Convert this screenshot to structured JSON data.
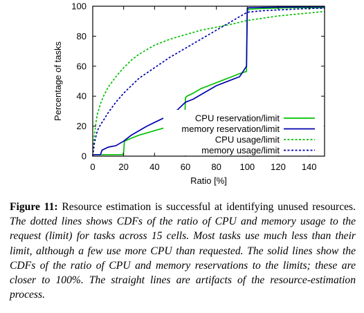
{
  "chart_data": {
    "type": "line",
    "title": "",
    "xlabel": "Ratio [%]",
    "ylabel": "Percentage of tasks",
    "xlim": [
      0,
      150
    ],
    "ylim": [
      0,
      100
    ],
    "x_ticks": [
      "0",
      "20",
      "40",
      "60",
      "80",
      "100",
      "120",
      "140"
    ],
    "y_ticks": [
      "0",
      "20",
      "40",
      "60",
      "80",
      "100"
    ],
    "grid": false,
    "legend_position": "bottom-right",
    "series": [
      {
        "name": "CPU reservation/limit",
        "style": "solid",
        "color": "#00c000",
        "x": [
          0,
          19.5,
          20,
          20.5,
          25,
          30,
          35,
          40,
          45,
          50,
          55,
          59.5,
          60,
          61,
          65,
          70,
          75,
          80,
          85,
          90,
          95,
          99.5,
          100,
          101,
          110,
          120,
          130,
          140,
          150
        ],
        "y": [
          1,
          1,
          3,
          10,
          12,
          14,
          15.5,
          17,
          18.5,
          20,
          22,
          24,
          39,
          40,
          42,
          45,
          47,
          49,
          51,
          53,
          55,
          56.5,
          97,
          98,
          98.5,
          98.8,
          99,
          99,
          99
        ]
      },
      {
        "name": "memory reservation/limit",
        "style": "solid",
        "color": "#0000b0",
        "x": [
          0,
          5,
          6,
          10,
          15,
          20,
          25,
          30,
          35,
          40,
          45,
          50,
          55,
          60,
          65,
          70,
          75,
          80,
          85,
          90,
          95,
          97,
          99.5,
          100,
          101,
          110,
          120,
          130,
          140,
          150
        ],
        "y": [
          1,
          1,
          4,
          6,
          7,
          10,
          14,
          17,
          20,
          22.5,
          25,
          28,
          31,
          36,
          38,
          41,
          44,
          47,
          49,
          51,
          53,
          56,
          60,
          98.5,
          99,
          99.2,
          99.4,
          99.5,
          99.6,
          99.7
        ]
      },
      {
        "name": "CPU usage/limit",
        "style": "dashed",
        "color": "#00c000",
        "x": [
          0,
          1,
          2,
          3,
          5,
          7,
          10,
          15,
          20,
          25,
          30,
          40,
          50,
          60,
          70,
          80,
          90,
          100,
          110,
          120,
          130,
          140,
          150
        ],
        "y": [
          0,
          13,
          22,
          28,
          35,
          40,
          46,
          53,
          59,
          64,
          68,
          74,
          78,
          81,
          84,
          86,
          88,
          90.5,
          92,
          93.5,
          94.5,
          95.5,
          96.5
        ]
      },
      {
        "name": "memory usage/limit",
        "style": "dashed",
        "color": "#0000b0",
        "x": [
          0,
          1,
          2,
          3,
          5,
          7,
          10,
          15,
          20,
          25,
          30,
          40,
          50,
          60,
          70,
          80,
          90,
          100,
          110,
          120,
          130,
          140,
          150
        ],
        "y": [
          0,
          8,
          13,
          17,
          21,
          24,
          29,
          36,
          42,
          47,
          52,
          59,
          66,
          72,
          78,
          84,
          90,
          96,
          97,
          97.5,
          98,
          98.5,
          98.7
        ]
      }
    ]
  },
  "caption": {
    "label": "Figure 11:",
    "first_sentence": "Resource estimation is successful at identifying unused resources.",
    "rest": "The dotted lines shows CDFs of the ratio of CPU and memory usage to the request (limit) for tasks across 15 cells. Most tasks use much less than their limit, although a few use more CPU than requested. The solid lines show the CDFs of the ratio of CPU and memory reservations to the limits; these are closer to 100%. The straight lines are artifacts of the resource-estimation process."
  }
}
